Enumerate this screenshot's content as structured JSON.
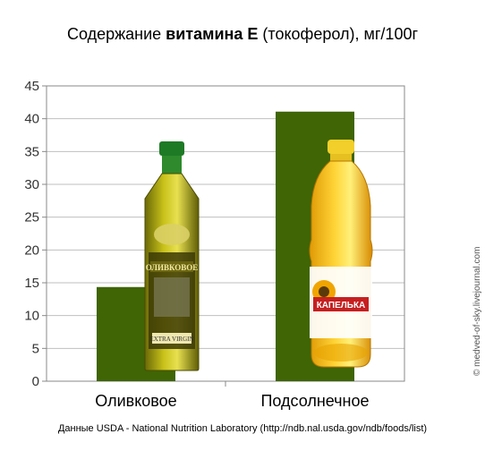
{
  "title": {
    "prefix": "Содержание ",
    "bold": "витамина Е",
    "suffix": " (токоферол), мг/100г"
  },
  "source_note": "Данные USDA - National Nutrition Laboratory (http://ndb.nal.usda.gov/ndb/foods/list)",
  "watermark": "© medved-of-sky.livejournal.com",
  "bottle_labels": {
    "olive": "ОЛИВКОВОЕ",
    "olive_sub": "EXTRA VIRGIN",
    "sunflower": "КАПЕЛЬКА"
  },
  "colors": {
    "bar": "#3f6504",
    "plot_border": "#888888",
    "grid": "#bfbfbf"
  },
  "chart_data": {
    "type": "bar",
    "title": "Содержание витамина Е (токоферол), мг/100г",
    "categories": [
      "Оливковое",
      "Подсолнечное"
    ],
    "values": [
      14.35,
      41.08
    ],
    "ylim": [
      0,
      45
    ],
    "yticks": [
      0,
      5,
      10,
      15,
      20,
      25,
      30,
      35,
      40,
      45
    ],
    "grid": true,
    "legend": "none"
  }
}
